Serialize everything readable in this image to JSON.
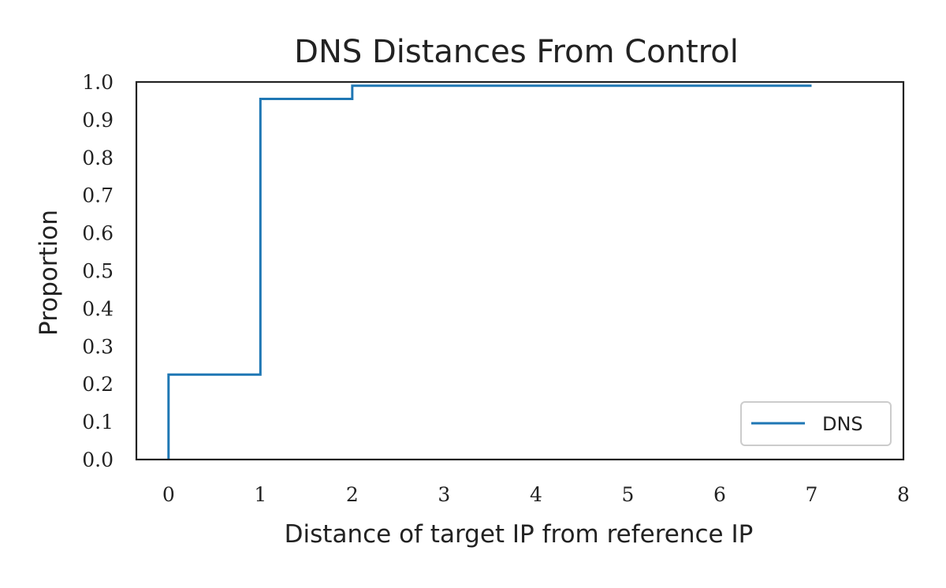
{
  "chart_data": {
    "type": "line",
    "subtype": "ecdf-step",
    "title": "DNS Distances From Control",
    "xlabel": "Distance of target IP from reference IP",
    "ylabel": "Proportion",
    "xlim": [
      -0.35,
      8.0
    ],
    "ylim": [
      0.0,
      1.0
    ],
    "x_ticks": [
      0,
      1,
      2,
      3,
      4,
      5,
      6,
      7,
      8
    ],
    "x_tick_labels": [
      "0",
      "1",
      "2",
      "3",
      "4",
      "5",
      "6",
      "7",
      "8"
    ],
    "y_ticks": [
      0.0,
      0.1,
      0.2,
      0.3,
      0.4,
      0.5,
      0.6,
      0.7,
      0.8,
      0.9,
      1.0
    ],
    "y_tick_labels": [
      "0.0",
      "0.1",
      "0.2",
      "0.3",
      "0.4",
      "0.5",
      "0.6",
      "0.7",
      "0.8",
      "0.9",
      "1.0"
    ],
    "grid": false,
    "legend": {
      "position": "lower-right",
      "entries": [
        "DNS"
      ]
    },
    "series": [
      {
        "name": "DNS",
        "color": "#1f77b4",
        "x": [
          0,
          1,
          2,
          7
        ],
        "y": [
          0.225,
          0.955,
          0.99,
          0.99
        ]
      }
    ]
  }
}
